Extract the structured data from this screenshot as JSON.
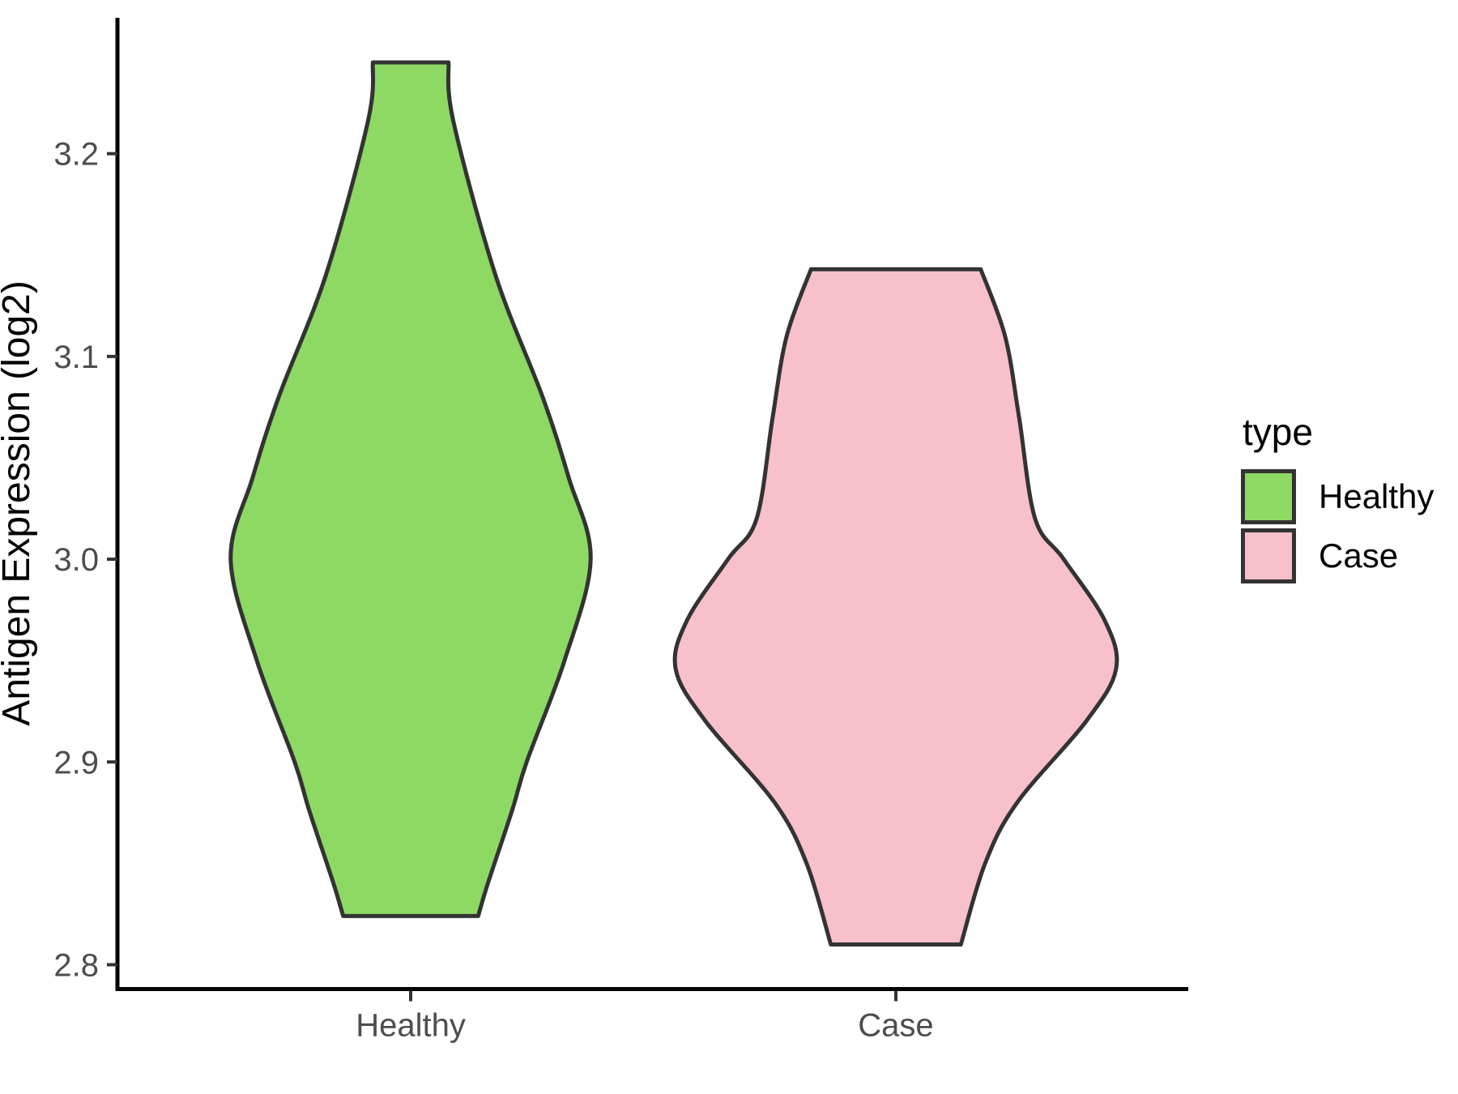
{
  "chart_data": {
    "type": "violin",
    "title": "",
    "xlabel": "",
    "ylabel": "Antigen Expression (log2)",
    "categories": [
      "Healthy",
      "Case"
    ],
    "grid": false,
    "legend_position": "right",
    "y_axis": {
      "range": [
        2.788,
        3.267
      ],
      "ticks": [
        {
          "label": "2.8",
          "value": 2.8
        },
        {
          "label": "2.9",
          "value": 2.9
        },
        {
          "label": "3.0",
          "value": 3.0
        },
        {
          "label": "3.1",
          "value": 3.1
        },
        {
          "label": "3.2",
          "value": 3.2
        }
      ]
    },
    "legend": {
      "title": "type",
      "entries": [
        {
          "label": "Healthy",
          "color": "#8DD964"
        },
        {
          "label": "Case",
          "color": "#F8C0CB"
        }
      ]
    },
    "series": [
      {
        "name": "Healthy",
        "fill": "#8DD964",
        "outline": "#333333",
        "y_min": 2.824,
        "y_max": 3.245,
        "peak_density_at": 3.0,
        "density_profile": [
          {
            "v": 3.245,
            "w": 0.078
          },
          {
            "v": 3.216,
            "w": 0.088
          },
          {
            "v": 3.14,
            "w": 0.175
          },
          {
            "v": 3.08,
            "w": 0.272
          },
          {
            "v": 3.04,
            "w": 0.326
          },
          {
            "v": 3.0,
            "w": 0.371
          },
          {
            "v": 2.95,
            "w": 0.317
          },
          {
            "v": 2.9,
            "w": 0.239
          },
          {
            "v": 2.876,
            "w": 0.209
          },
          {
            "v": 2.84,
            "w": 0.159
          },
          {
            "v": 2.824,
            "w": 0.139
          }
        ]
      },
      {
        "name": "Case",
        "fill": "#F8C0CB",
        "outline": "#333333",
        "y_min": 2.81,
        "y_max": 3.143,
        "peak_density_at": 2.946,
        "density_profile": [
          {
            "v": 3.143,
            "w": 0.175
          },
          {
            "v": 3.11,
            "w": 0.225
          },
          {
            "v": 3.07,
            "w": 0.254
          },
          {
            "v": 3.02,
            "w": 0.287
          },
          {
            "v": 3.0,
            "w": 0.346
          },
          {
            "v": 2.97,
            "w": 0.43
          },
          {
            "v": 2.946,
            "w": 0.454
          },
          {
            "v": 2.92,
            "w": 0.392
          },
          {
            "v": 2.88,
            "w": 0.25
          },
          {
            "v": 2.85,
            "w": 0.184
          },
          {
            "v": 2.81,
            "w": 0.134
          }
        ]
      }
    ]
  },
  "colors": {
    "axis_line": "#000000",
    "tick_mark": "#333333",
    "tick_label": "#4d4d4d",
    "violin_outline": "#333333",
    "background": "#ffffff"
  }
}
